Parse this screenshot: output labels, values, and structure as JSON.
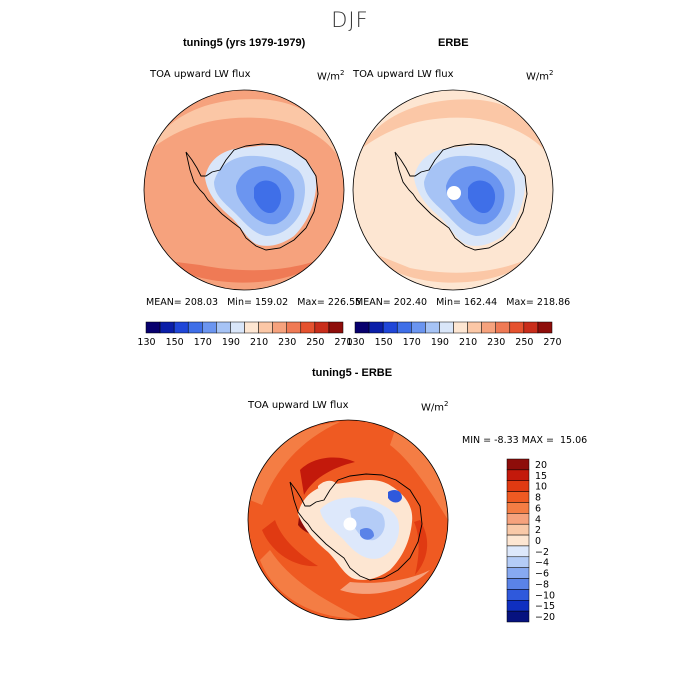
{
  "figure": {
    "title": "DJF"
  },
  "chart_data": [
    {
      "type": "heatmap",
      "projection": "south-polar-stereographic",
      "title": "tuning5 (yrs 1979-1979)",
      "variable": "TOA upward LW flux",
      "units": "W/m",
      "units_exp": "2",
      "stats": {
        "mean_label": "MEAN=",
        "mean": "208.03",
        "min_label": "Min=",
        "min": "159.02",
        "max_label": "Max=",
        "max": "226.55"
      },
      "colorbar_ticks": [
        "130",
        "150",
        "170",
        "190",
        "210",
        "230",
        "250",
        "270"
      ],
      "levels": [
        130,
        140,
        150,
        160,
        170,
        180,
        190,
        200,
        210,
        220,
        230,
        240,
        250,
        260,
        270
      ]
    },
    {
      "type": "heatmap",
      "projection": "south-polar-stereographic",
      "title": "ERBE",
      "variable": "TOA upward LW flux",
      "units": "W/m",
      "units_exp": "2",
      "stats": {
        "mean_label": "MEAN=",
        "mean": "202.40",
        "min_label": "Min=",
        "min": "162.44",
        "max_label": "Max=",
        "max": "218.86"
      },
      "colorbar_ticks": [
        "130",
        "150",
        "170",
        "190",
        "210",
        "230",
        "250",
        "270"
      ],
      "levels": [
        130,
        140,
        150,
        160,
        170,
        180,
        190,
        200,
        210,
        220,
        230,
        240,
        250,
        260,
        270
      ]
    },
    {
      "type": "heatmap",
      "projection": "south-polar-stereographic",
      "title": "tuning5 - ERBE",
      "variable": "TOA upward LW flux",
      "units": "W/m",
      "units_exp": "2",
      "stats": {
        "min_label": "MIN =",
        "min": "-8.33",
        "max_label": "MAX =",
        "max": "15.06"
      },
      "colorbar_ticks": [
        "20",
        "15",
        "10",
        "8",
        "6",
        "4",
        "2",
        "0",
        "−2",
        "−4",
        "−6",
        "−8",
        "−10",
        "−15",
        "−20"
      ],
      "levels": [
        -20,
        -15,
        -10,
        -8,
        -6,
        -4,
        -2,
        0,
        2,
        4,
        6,
        8,
        10,
        15,
        20
      ]
    }
  ],
  "colors": {
    "abs_scale": [
      "#08006e",
      "#0a1ea8",
      "#1f46d8",
      "#3f6fe8",
      "#6b95f0",
      "#a6c3f5",
      "#d9e6f9",
      "#fde6d2",
      "#fbc7a6",
      "#f6a27d",
      "#ef7a55",
      "#e5522f",
      "#c92d1a",
      "#8e0d0a"
    ],
    "diff_scale": [
      "#8e0d0a",
      "#c3190b",
      "#e03a12",
      "#ef5a22",
      "#f47d44",
      "#f6a27d",
      "#f9c9a8",
      "#fde6d2",
      "#dde8fb",
      "#b4ccf7",
      "#87a9f1",
      "#5a83e8",
      "#2f59dc",
      "#0f2fc0",
      "#06127f"
    ]
  }
}
